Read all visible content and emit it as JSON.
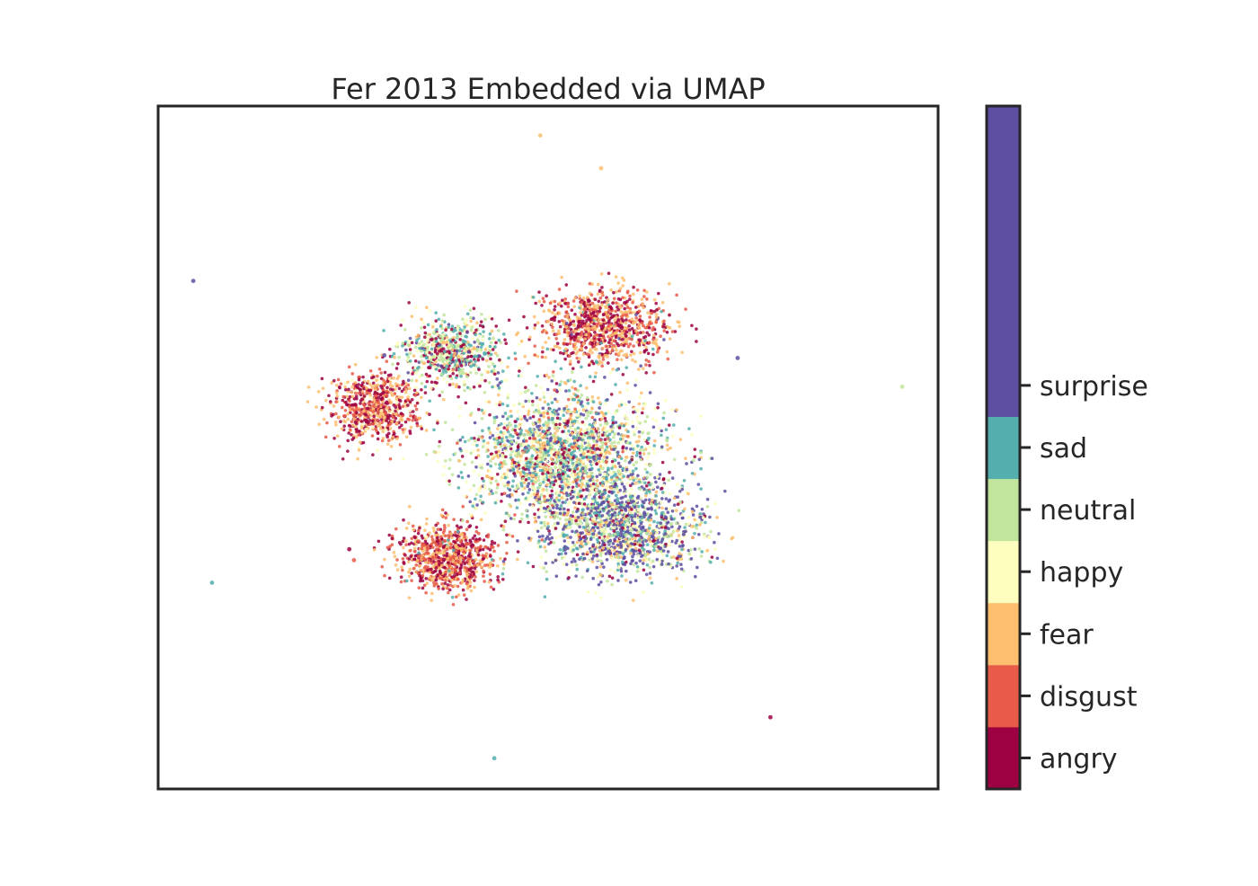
{
  "chart_data": {
    "type": "scatter",
    "title": "Fer 2013 Embedded via UMAP",
    "xlabel": "",
    "ylabel": "",
    "xticks": [],
    "yticks": [],
    "grid": false,
    "colormap": "Spectral",
    "colorbar": {
      "labels": [
        "angry",
        "disgust",
        "fear",
        "happy",
        "neutral",
        "sad",
        "surprise"
      ],
      "colors": [
        "#9e0142",
        "#e75b48",
        "#fdbe6f",
        "#feffbe",
        "#c1e59c",
        "#53aead",
        "#5e4fa2"
      ],
      "top_color": "#5e4fa2"
    },
    "xlim": [
      0,
      100
    ],
    "ylim": [
      0,
      100
    ],
    "outliers": [
      {
        "x": 49.0,
        "y": 95.7,
        "label": "fear"
      },
      {
        "x": 56.8,
        "y": 90.9,
        "label": "fear"
      },
      {
        "x": 4.5,
        "y": 74.4,
        "label": "surprise"
      },
      {
        "x": 29.0,
        "y": 63.5,
        "label": "surprise"
      },
      {
        "x": 74.3,
        "y": 63.1,
        "label": "surprise"
      },
      {
        "x": 95.4,
        "y": 58.9,
        "label": "neutral"
      },
      {
        "x": 6.9,
        "y": 30.2,
        "label": "sad"
      },
      {
        "x": 24.5,
        "y": 35.1,
        "label": "angry"
      },
      {
        "x": 25.1,
        "y": 33.5,
        "label": "disgust"
      },
      {
        "x": 78.5,
        "y": 10.5,
        "label": "angry"
      },
      {
        "x": 43.1,
        "y": 4.5,
        "label": "sad"
      }
    ],
    "clusters": [
      {
        "name": "upper arc",
        "cx": 57.0,
        "cy": 67.5,
        "rx": 7.5,
        "ry": 5.0,
        "count": 900,
        "mix": {
          "angry": 0.34,
          "disgust": 0.28,
          "fear": 0.33,
          "sad": 0.03,
          "surprise": 0.02
        }
      },
      {
        "name": "left lobe",
        "cx": 27.5,
        "cy": 56.0,
        "rx": 5.2,
        "ry": 4.8,
        "count": 650,
        "mix": {
          "angry": 0.36,
          "disgust": 0.28,
          "fear": 0.32,
          "happy": 0.04
        }
      },
      {
        "name": "lower left lobe",
        "cx": 37.0,
        "cy": 34.0,
        "rx": 5.8,
        "ry": 4.6,
        "count": 800,
        "mix": {
          "angry": 0.34,
          "disgust": 0.32,
          "fear": 0.32,
          "sad": 0.02
        }
      },
      {
        "name": "top left branch",
        "cx": 37.5,
        "cy": 64.0,
        "rx": 5.5,
        "ry": 4.5,
        "count": 650,
        "mix": {
          "angry": 0.22,
          "fear": 0.12,
          "happy": 0.16,
          "neutral": 0.2,
          "sad": 0.24,
          "surprise": 0.06
        }
      },
      {
        "name": "central body",
        "cx": 52.0,
        "cy": 49.0,
        "rx": 11.0,
        "ry": 8.5,
        "count": 2100,
        "mix": {
          "angry": 0.1,
          "disgust": 0.04,
          "fear": 0.14,
          "happy": 0.2,
          "neutral": 0.2,
          "sad": 0.2,
          "surprise": 0.12
        }
      },
      {
        "name": "lower right tail",
        "cx": 59.5,
        "cy": 38.0,
        "rx": 9.5,
        "ry": 6.5,
        "count": 1300,
        "mix": {
          "angry": 0.06,
          "fear": 0.1,
          "happy": 0.16,
          "neutral": 0.16,
          "sad": 0.14,
          "surprise": 0.38
        }
      }
    ]
  }
}
